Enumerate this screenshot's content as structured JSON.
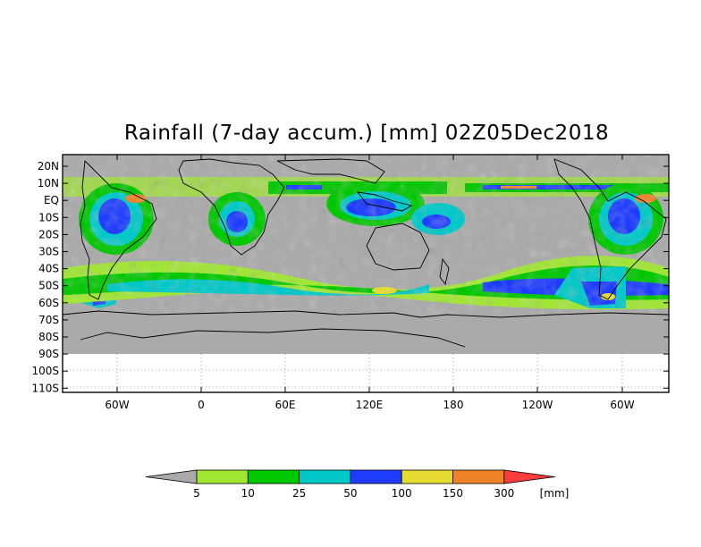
{
  "title": "Rainfall (7-day accum.) [mm] 02Z05Dec2018",
  "map": {
    "lat_labels": [
      "20N",
      "10N",
      "EQ",
      "10S",
      "20S",
      "30S",
      "40S",
      "50S",
      "60S",
      "70S",
      "80S",
      "90S",
      "100S",
      "110S"
    ],
    "lon_labels": [
      "60W",
      "0",
      "60E",
      "120E",
      "180",
      "120W",
      "60W"
    ],
    "no_data_color": "#aaaaaa"
  },
  "legend": {
    "values": [
      "5",
      "10",
      "25",
      "50",
      "100",
      "150",
      "300"
    ],
    "unit": "[mm]",
    "colors": [
      "#aaaaaa",
      "#a0e632",
      "#00c800",
      "#00c8c8",
      "#1e3cff",
      "#e6dc32",
      "#f08228",
      "#fa3c3c"
    ]
  }
}
